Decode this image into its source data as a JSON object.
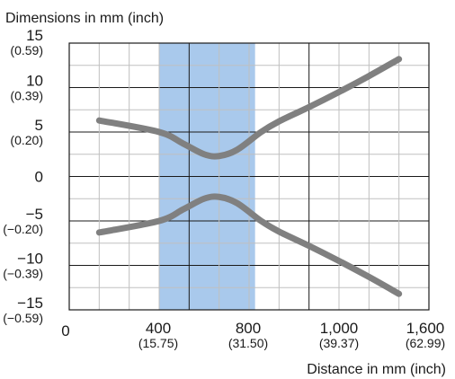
{
  "chart_data": {
    "type": "line",
    "ylabel": "Dimensions in mm (inch)",
    "xlabel": "Distance in mm (inch)",
    "xlim": [
      0,
      1200
    ],
    "ylim": [
      -15,
      15
    ],
    "grid": true,
    "x_ticks": [
      {
        "value": 0,
        "label": "0",
        "sub": ""
      },
      {
        "value": 400,
        "label": "400",
        "sub": "(15.75)"
      },
      {
        "value": 800,
        "label": "800",
        "sub": "(31.50)"
      },
      {
        "value": 1000,
        "label": "1,000",
        "sub": "(39.37)"
      },
      {
        "value": 1600,
        "label": "1,600",
        "sub": "(62.99)"
      }
    ],
    "y_ticks": [
      {
        "value": 15,
        "label": "15",
        "sub": "(0.59)"
      },
      {
        "value": 10,
        "label": "10",
        "sub": "(0.39)"
      },
      {
        "value": 5,
        "label": "5",
        "sub": "(0.20)"
      },
      {
        "value": 0,
        "label": "0",
        "sub": ""
      },
      {
        "value": -5,
        "label": "−5",
        "sub": "(−0.20)"
      },
      {
        "value": -10,
        "label": "−10",
        "sub": "(−0.39)"
      },
      {
        "value": -15,
        "label": "−15",
        "sub": "(−0.59)"
      }
    ],
    "highlight_band": {
      "x_start": 300,
      "x_end": 620,
      "color": "#a9c9ec"
    },
    "series": [
      {
        "color": "#808080",
        "x": [
          100,
          300,
          380,
          450,
          500,
          560,
          640,
          700,
          800,
          900,
          1000,
          1100
        ],
        "y": [
          6.3,
          5.0,
          3.7,
          2.5,
          2.3,
          3.0,
          5.0,
          6.2,
          7.8,
          9.5,
          11.3,
          13.2
        ]
      },
      {
        "color": "#808080",
        "x": [
          100,
          300,
          380,
          450,
          500,
          560,
          640,
          700,
          800,
          900,
          1000,
          1100
        ],
        "y": [
          -6.3,
          -5.0,
          -3.7,
          -2.5,
          -2.3,
          -3.0,
          -5.0,
          -6.2,
          -7.8,
          -9.5,
          -11.3,
          -13.2
        ]
      }
    ]
  }
}
